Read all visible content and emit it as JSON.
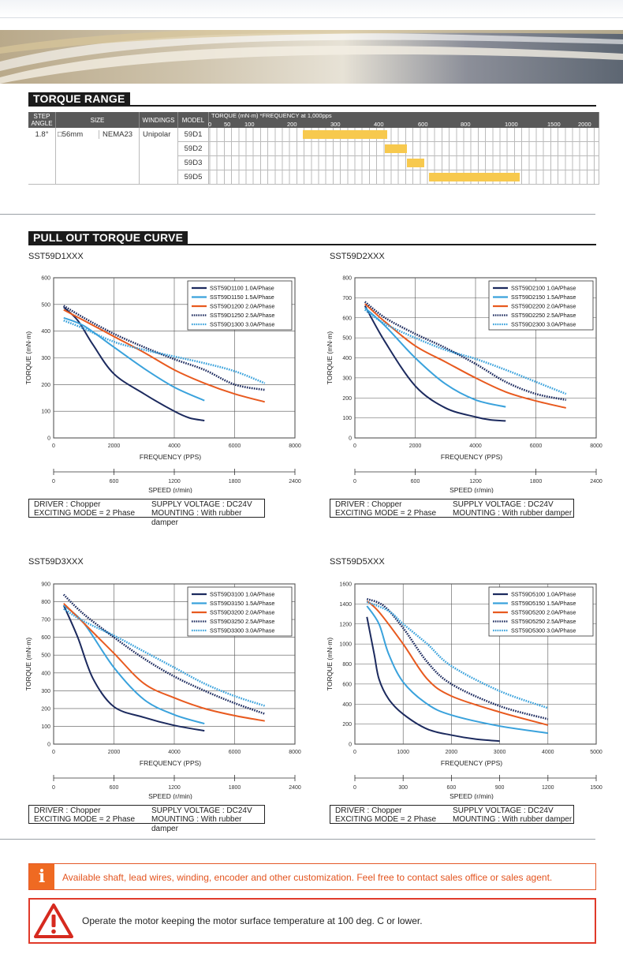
{
  "torque_range": {
    "title": "TORQUE RANGE",
    "headers": {
      "step_angle": "STEP ANGLE",
      "size": "SIZE",
      "windings": "WINDINGS",
      "model": "MODEL",
      "torque": "TORQUE (mN·m) *FREQUENCY at 1,000pps"
    },
    "scale": [
      "0",
      "50",
      "100",
      "200",
      "300",
      "400",
      "600",
      "800",
      "1000",
      "1500",
      "2000"
    ],
    "row": {
      "step_angle": "1.8°",
      "size_a": "□56mm",
      "size_b": "NEMA23",
      "windings": "Unipolar"
    },
    "models": [
      {
        "name": "59D1",
        "from": 230,
        "to": 450
      },
      {
        "name": "59D2",
        "from": 440,
        "to": 540
      },
      {
        "name": "59D3",
        "from": 540,
        "to": 620
      },
      {
        "name": "59D5",
        "from": 640,
        "to": 1150
      }
    ]
  },
  "pull_out": {
    "title": "PULL OUT TORQUE CURVE",
    "info": {
      "driver": "DRIVER : Chopper",
      "voltage": "SUPPLY VOLTAGE : DC24V",
      "mode": "EXCITING MODE = 2 Phase",
      "mounting": "MOUNTING : With rubber damper"
    },
    "xlabel": "FREQUENCY (PPS)",
    "ylabel": "TORQUE (mN·m)",
    "speed_label": "SPEED (r/min)"
  },
  "chart_data": [
    {
      "type": "line",
      "title": "SST59D1XXX",
      "xlabel": "FREQUENCY (PPS)",
      "ylabel": "TORQUE (mN·m)",
      "xlim": [
        0,
        8000
      ],
      "ylim": [
        0,
        600
      ],
      "xticks": [
        0,
        2000,
        4000,
        6000,
        8000
      ],
      "yticks": [
        0,
        100,
        200,
        300,
        400,
        500,
        600
      ],
      "speed_ticks": [
        0,
        600,
        1200,
        1800,
        2400
      ],
      "legend": "top-right",
      "series": [
        {
          "name": "SST59D1100  1.0A/Phase",
          "color": "#1c2a5e",
          "dash": "solid",
          "x": [
            333,
            800,
            1300,
            2000,
            3000,
            4000,
            4500,
            5000
          ],
          "y": [
            490,
            440,
            350,
            240,
            165,
            100,
            75,
            65
          ]
        },
        {
          "name": "SST59D1150  1.5A/Phase",
          "color": "#3aa2dc",
          "dash": "solid",
          "x": [
            333,
            1000,
            2000,
            3000,
            4000,
            5000
          ],
          "y": [
            450,
            420,
            340,
            260,
            190,
            140
          ]
        },
        {
          "name": "SST59D1200  2.0A/Phase",
          "color": "#e85a1f",
          "dash": "solid",
          "x": [
            333,
            1000,
            2000,
            3000,
            4000,
            5000,
            6000,
            7000
          ],
          "y": [
            480,
            440,
            380,
            320,
            255,
            205,
            165,
            135
          ]
        },
        {
          "name": "SST59D1250  2.5A/Phase",
          "color": "#1c2a5e",
          "dash": "dotted",
          "x": [
            333,
            1000,
            2000,
            3000,
            4000,
            5000,
            6000,
            7000
          ],
          "y": [
            495,
            450,
            390,
            340,
            295,
            255,
            200,
            180
          ]
        },
        {
          "name": "SST59D1300  3.0A/Phase",
          "color": "#3aa2dc",
          "dash": "dotted",
          "x": [
            333,
            1000,
            2000,
            3000,
            4000,
            5000,
            6000,
            7000
          ],
          "y": [
            440,
            410,
            360,
            330,
            305,
            280,
            250,
            205
          ]
        }
      ]
    },
    {
      "type": "line",
      "title": "SST59D2XXX",
      "xlabel": "FREQUENCY (PPS)",
      "ylabel": "TORQUE (mN·m)",
      "xlim": [
        0,
        8000
      ],
      "ylim": [
        0,
        800
      ],
      "xticks": [
        0,
        2000,
        4000,
        6000,
        8000
      ],
      "yticks": [
        0,
        100,
        200,
        300,
        400,
        500,
        600,
        700,
        800
      ],
      "speed_ticks": [
        0,
        600,
        1200,
        1800,
        2400
      ],
      "legend": "top-right",
      "series": [
        {
          "name": "SST59D2100  1.0A/Phase",
          "color": "#1c2a5e",
          "dash": "solid",
          "x": [
            333,
            1000,
            2000,
            3000,
            4000,
            4500,
            5000
          ],
          "y": [
            660,
            480,
            260,
            150,
            105,
            90,
            85
          ]
        },
        {
          "name": "SST59D2150  1.5A/Phase",
          "color": "#3aa2dc",
          "dash": "solid",
          "x": [
            333,
            1000,
            2000,
            3000,
            4000,
            5000
          ],
          "y": [
            650,
            560,
            400,
            270,
            190,
            155
          ]
        },
        {
          "name": "SST59D2200  2.0A/Phase",
          "color": "#e85a1f",
          "dash": "solid",
          "x": [
            333,
            1000,
            2000,
            3000,
            4000,
            5000,
            6000,
            7000
          ],
          "y": [
            670,
            580,
            460,
            380,
            300,
            230,
            185,
            150
          ]
        },
        {
          "name": "SST59D2250  2.5A/Phase",
          "color": "#1c2a5e",
          "dash": "dotted",
          "x": [
            333,
            1000,
            2000,
            3000,
            4000,
            5000,
            6000,
            7000
          ],
          "y": [
            680,
            600,
            520,
            450,
            370,
            280,
            220,
            190
          ]
        },
        {
          "name": "SST59D2300  3.0A/Phase",
          "color": "#3aa2dc",
          "dash": "dotted",
          "x": [
            333,
            1000,
            2000,
            3000,
            4000,
            5000,
            6000,
            7000
          ],
          "y": [
            640,
            570,
            500,
            440,
            395,
            340,
            280,
            220
          ]
        }
      ]
    },
    {
      "type": "line",
      "title": "SST59D3XXX",
      "xlabel": "FREQUENCY (PPS)",
      "ylabel": "TORQUE (mN·m)",
      "xlim": [
        0,
        8000
      ],
      "ylim": [
        0,
        900
      ],
      "xticks": [
        0,
        2000,
        4000,
        6000,
        8000
      ],
      "yticks": [
        0,
        100,
        200,
        300,
        400,
        500,
        600,
        700,
        800,
        900
      ],
      "speed_ticks": [
        0,
        600,
        1200,
        1800,
        2400
      ],
      "legend": "top-right",
      "series": [
        {
          "name": "SST59D3100  1.0A/Phase",
          "color": "#1c2a5e",
          "dash": "solid",
          "x": [
            333,
            800,
            1300,
            2000,
            3000,
            4000,
            5000
          ],
          "y": [
            780,
            600,
            370,
            210,
            150,
            105,
            75
          ]
        },
        {
          "name": "SST59D3150  1.5A/Phase",
          "color": "#3aa2dc",
          "dash": "solid",
          "x": [
            333,
            1000,
            2000,
            3000,
            4000,
            5000
          ],
          "y": [
            780,
            680,
            430,
            250,
            165,
            115
          ]
        },
        {
          "name": "SST59D3200  2.0A/Phase",
          "color": "#e85a1f",
          "dash": "solid",
          "x": [
            333,
            1000,
            2000,
            3000,
            4000,
            5000,
            6000,
            7000
          ],
          "y": [
            790,
            680,
            510,
            340,
            260,
            200,
            160,
            130
          ]
        },
        {
          "name": "SST59D3250  2.5A/Phase",
          "color": "#1c2a5e",
          "dash": "dotted",
          "x": [
            333,
            1000,
            2000,
            3000,
            4000,
            5000,
            6000,
            7000
          ],
          "y": [
            840,
            730,
            600,
            480,
            380,
            300,
            230,
            170
          ]
        },
        {
          "name": "SST59D3300  3.0A/Phase",
          "color": "#3aa2dc",
          "dash": "dotted",
          "x": [
            333,
            1000,
            2000,
            3000,
            4000,
            5000,
            6000,
            7000
          ],
          "y": [
            760,
            690,
            610,
            520,
            430,
            340,
            270,
            215
          ]
        }
      ]
    },
    {
      "type": "line",
      "title": "SST59D5XXX",
      "xlabel": "FREQUENCY (PPS)",
      "ylabel": "TORQUE (mN·m)",
      "xlim": [
        0,
        5000
      ],
      "ylim": [
        0,
        1600
      ],
      "xticks": [
        0,
        1000,
        2000,
        3000,
        4000,
        5000
      ],
      "yticks": [
        0,
        200,
        400,
        600,
        800,
        1000,
        1200,
        1400,
        1600
      ],
      "speed_ticks": [
        0,
        300,
        600,
        900,
        1200,
        1500
      ],
      "legend": "top-right",
      "series": [
        {
          "name": "SST59D5100  1.0A/Phase",
          "color": "#1c2a5e",
          "dash": "solid",
          "x": [
            250,
            400,
            500,
            700,
            1000,
            1500,
            2000,
            2500,
            3000
          ],
          "y": [
            1270,
            900,
            650,
            450,
            300,
            150,
            90,
            50,
            30
          ]
        },
        {
          "name": "SST59D5150  1.5A/Phase",
          "color": "#3aa2dc",
          "dash": "solid",
          "x": [
            250,
            500,
            700,
            1000,
            1500,
            2000,
            3000,
            4000
          ],
          "y": [
            1380,
            1200,
            900,
            620,
            400,
            290,
            180,
            110
          ]
        },
        {
          "name": "SST59D5200  2.0A/Phase",
          "color": "#e85a1f",
          "dash": "solid",
          "x": [
            250,
            500,
            1000,
            1500,
            2000,
            3000,
            4000
          ],
          "y": [
            1430,
            1320,
            1000,
            650,
            480,
            320,
            190
          ]
        },
        {
          "name": "SST59D5250  2.5A/Phase",
          "color": "#1c2a5e",
          "dash": "dotted",
          "x": [
            250,
            600,
            1000,
            1500,
            2000,
            3000,
            4000
          ],
          "y": [
            1450,
            1380,
            1160,
            820,
            600,
            380,
            250
          ]
        },
        {
          "name": "SST59D5300  3.0A/Phase",
          "color": "#3aa2dc",
          "dash": "dotted",
          "x": [
            250,
            700,
            1000,
            1500,
            2000,
            3000,
            4000
          ],
          "y": [
            1420,
            1330,
            1200,
            1000,
            780,
            530,
            360
          ]
        }
      ]
    }
  ],
  "notices": {
    "customization": "Available shaft, lead wires, winding, encoder and other customization. Feel free to contact sales office or sales agent.",
    "warning": "Operate the motor keeping the motor surface temperature at 100 deg. C or lower."
  },
  "icons": {
    "info": "info-icon",
    "warning": "warning-triangle-icon"
  }
}
